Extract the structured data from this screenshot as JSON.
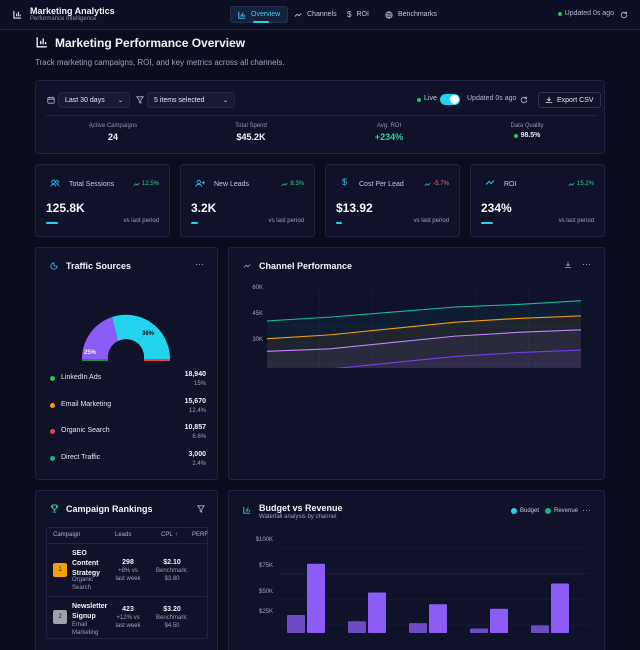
{
  "header": {
    "title": "Marketing Analytics",
    "subtitle": "Performance Intelligence",
    "tabs": [
      "Overview",
      "Channels",
      "ROI",
      "Benchmarks"
    ],
    "status": "Updated 0s ago"
  },
  "page": {
    "title": "Marketing Performance Overview",
    "subtitle": "Track marketing campaigns, ROI, and key metrics across all channels."
  },
  "controls": {
    "date_range": "Last 30 days",
    "filter": "5 items selected",
    "live_label": "Live",
    "live_on": true,
    "updated": "Updated 0s ago",
    "export_label": "Export CSV"
  },
  "summary": [
    {
      "label": "Active Campaigns",
      "value": "24"
    },
    {
      "label": "Total Spend",
      "value": "$45.2K"
    },
    {
      "label": "Avg. ROI",
      "value": "+234%"
    },
    {
      "label": "Data Quality",
      "value": "98.5%"
    }
  ],
  "kpis": [
    {
      "label": "Total Sessions",
      "change": "12.5%",
      "value": "125.8K",
      "vs": "vs last period",
      "icon": "users-icon",
      "trend": "up",
      "progress": 0.1
    },
    {
      "label": "New Leads",
      "change": "8.3%",
      "value": "3.2K",
      "vs": "vs last period",
      "icon": "user-plus-icon",
      "trend": "up",
      "progress": 0.06
    },
    {
      "label": "Cost Per Lead",
      "change": "-5.7%",
      "value": "$13.92",
      "vs": "vs last period",
      "icon": "dollar-icon",
      "trend": "down",
      "progress": 0.05
    },
    {
      "label": "ROI",
      "change": "15.2%",
      "value": "234%",
      "vs": "vs last period",
      "icon": "trending-up-icon",
      "trend": "up",
      "progress": 0.1
    }
  ],
  "traffic": {
    "title": "Traffic Sources",
    "sources": [
      {
        "name": "LinkedIn Ads",
        "value": "18,940",
        "pct": "15%",
        "color": "#22c55e"
      },
      {
        "name": "Email Marketing",
        "value": "15,670",
        "pct": "12.4%",
        "color": "#f59e0b"
      },
      {
        "name": "Organic Search",
        "value": "10,857",
        "pct": "8.6%",
        "color": "#ef4444"
      },
      {
        "name": "Direct Traffic",
        "value": "3,000",
        "pct": "2.4%",
        "color": "#10b981"
      }
    ],
    "donut_labels": {
      "a": "36%",
      "b": "25%"
    }
  },
  "channel": {
    "title": "Channel Performance",
    "y_ticks": [
      "60K",
      "45K",
      "30K"
    ]
  },
  "rankings": {
    "title": "Campaign Rankings",
    "headers": [
      "Campaign",
      "Leads",
      "CPL",
      "PERF"
    ],
    "rows": [
      {
        "rank": "1",
        "name": "SEO Content Strategy",
        "channel": "Organic Search",
        "leads": "298",
        "leads_sub": "+8% vs last week",
        "cpl": "$2.10",
        "cpl_sub": "Benchmark: $3.80"
      },
      {
        "rank": "2",
        "name": "Newsletter Signup",
        "channel": "Email Marketing",
        "leads": "423",
        "leads_sub": "+12% vs last week",
        "cpl": "$3.20",
        "cpl_sub": "Benchmark: $4.50"
      }
    ]
  },
  "budget": {
    "title": "Budget vs Revenue",
    "subtitle": "Waterfall analysis by channel",
    "legend": [
      "Budget",
      "Revenue"
    ],
    "y_ticks": [
      "$100K",
      "$75K",
      "$50K",
      "$25K"
    ]
  },
  "chart_data": [
    {
      "type": "line",
      "title": "Channel Performance",
      "ylim": [
        0,
        60000
      ],
      "y_ticks": [
        30000,
        45000,
        60000
      ],
      "series": [
        {
          "color": "#14b8a6",
          "values": [
            47000,
            48500,
            50500,
            52500,
            53500,
            55000
          ]
        },
        {
          "color": "#f59e0b",
          "values": [
            40000,
            41500,
            44000,
            46500,
            48000,
            49000
          ]
        },
        {
          "color": "#c084fc",
          "values": [
            35000,
            36000,
            38500,
            41000,
            42500,
            43500
          ]
        },
        {
          "color": "#7c3aed",
          "values": [
            27000,
            28000,
            30500,
            33000,
            34500,
            35500
          ]
        }
      ]
    },
    {
      "type": "bar",
      "title": "Budget vs Revenue",
      "ylim": [
        0,
        100000
      ],
      "series": [
        {
          "name": "Budget",
          "color": "#22d3ee",
          "values": [
            20000,
            13000,
            11000,
            5000,
            8500
          ]
        },
        {
          "name": "Revenue",
          "color": "#8b5cf6",
          "values": [
            77000,
            45000,
            32000,
            27000,
            55000
          ]
        }
      ]
    }
  ]
}
